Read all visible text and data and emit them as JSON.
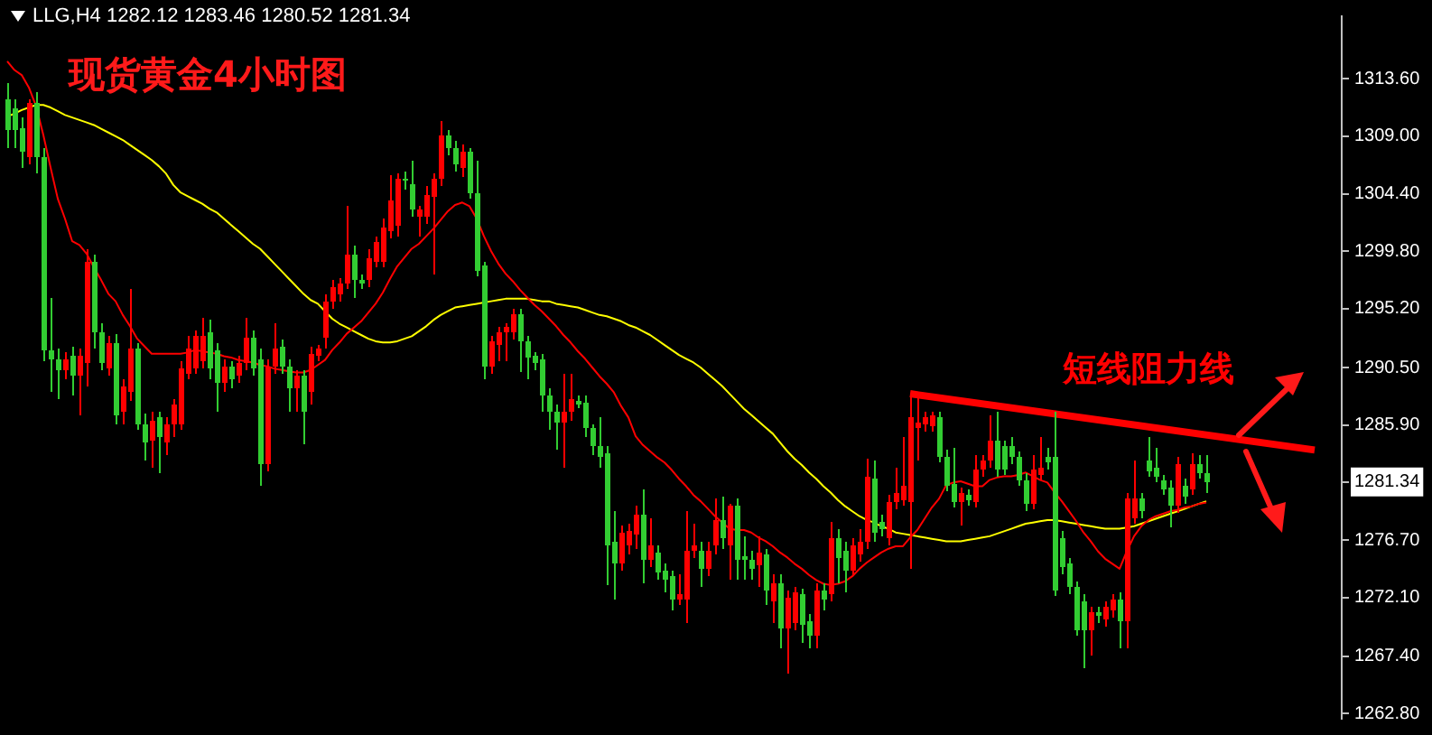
{
  "chart_data": {
    "type": "candlestick",
    "title": "现货黄金4小时图",
    "subtitle": "LLG,H4 1282.12 1283.46 1280.52 1281.34",
    "categories": [
      null,
      null,
      null,
      null,
      null,
      null,
      null,
      null,
      null,
      null,
      null,
      null,
      null,
      null,
      null,
      null,
      null,
      null,
      null,
      null,
      null,
      null,
      null,
      null,
      null,
      null,
      null,
      null,
      null,
      null,
      null,
      null,
      null,
      null,
      null,
      null,
      null,
      null,
      null,
      null,
      null,
      null,
      null,
      null,
      null,
      null,
      null,
      null,
      null,
      null,
      null,
      null,
      null,
      null,
      null,
      null,
      null,
      null,
      null,
      null,
      null,
      null,
      null,
      null,
      null,
      null,
      null,
      null,
      null,
      null,
      null,
      null,
      null,
      null,
      null,
      null,
      null,
      null,
      null,
      null,
      null,
      null,
      null,
      null,
      null,
      null,
      null,
      null,
      null,
      null,
      null,
      null,
      null,
      null,
      null,
      null,
      null,
      null,
      null,
      null,
      null,
      null,
      null,
      null,
      null,
      null,
      null,
      null,
      null,
      null,
      null,
      null,
      null,
      null,
      null,
      null,
      null,
      null,
      null,
      null,
      null,
      null,
      null,
      null,
      null,
      null,
      null,
      null,
      null,
      null,
      null,
      null,
      null,
      null,
      null,
      null,
      null,
      null,
      null,
      null,
      null,
      null,
      null,
      null,
      null,
      null,
      null,
      null,
      null,
      null,
      null,
      null,
      null,
      null,
      null,
      null,
      null,
      null,
      null,
      null,
      null,
      null,
      null,
      null,
      null,
      null,
      null,
      null,
      null,
      null,
      null,
      null,
      null,
      null,
      null,
      null,
      null,
      null,
      null,
      null,
      null,
      null
    ],
    "ohlc": [
      [
        1312.0,
        1313.3,
        1308.0,
        1309.5
      ],
      [
        1311.2,
        1312.0,
        1308.0,
        1309.5
      ],
      [
        1309.6,
        1310.5,
        1306.5,
        1307.7
      ],
      [
        1307.4,
        1312.0,
        1306.8,
        1311.6
      ],
      [
        1311.6,
        1312.5,
        1306.0,
        1307.3
      ],
      [
        1307.3,
        1308.0,
        1291.0,
        1291.9
      ],
      [
        1291.9,
        1296.0,
        1288.5,
        1291.2
      ],
      [
        1291.2,
        1292.0,
        1288.0,
        1290.3
      ],
      [
        1290.3,
        1291.8,
        1289.5,
        1291.2
      ],
      [
        1291.5,
        1292.2,
        1288.3,
        1289.8
      ],
      [
        1289.8,
        1292.0,
        1286.7,
        1291.5
      ],
      [
        1290.9,
        1300.0,
        1289.0,
        1299.0
      ],
      [
        1299.0,
        1299.5,
        1292.0,
        1293.3
      ],
      [
        1293.3,
        1294.0,
        1290.3,
        1290.9
      ],
      [
        1290.5,
        1293.0,
        1289.8,
        1292.5
      ],
      [
        1292.5,
        1293.2,
        1286.0,
        1286.7
      ],
      [
        1287.0,
        1289.5,
        1286.0,
        1289.0
      ],
      [
        1288.5,
        1296.8,
        1287.8,
        1292.0
      ],
      [
        1292.0,
        1292.5,
        1285.5,
        1286.0
      ],
      [
        1286.0,
        1286.8,
        1283.0,
        1284.5
      ],
      [
        1284.6,
        1287.0,
        1282.5,
        1286.2
      ],
      [
        1286.5,
        1287.0,
        1282.0,
        1285.0
      ],
      [
        1284.5,
        1286.5,
        1283.5,
        1286.0
      ],
      [
        1286.0,
        1288.0,
        1285.0,
        1287.5
      ],
      [
        1286.0,
        1291.0,
        1285.5,
        1290.5
      ],
      [
        1290.0,
        1293.0,
        1289.5,
        1292.0
      ],
      [
        1290.5,
        1293.5,
        1290.0,
        1293.0
      ],
      [
        1291.0,
        1294.5,
        1290.5,
        1293.0
      ],
      [
        1293.3,
        1294.4,
        1289.5,
        1290.5
      ],
      [
        1291.9,
        1292.5,
        1287.0,
        1289.2
      ],
      [
        1289.2,
        1291.2,
        1288.5,
        1290.6
      ],
      [
        1290.6,
        1291.0,
        1288.8,
        1289.5
      ],
      [
        1289.9,
        1291.5,
        1289.3,
        1290.9
      ],
      [
        1290.9,
        1294.5,
        1290.3,
        1292.9
      ],
      [
        1292.9,
        1293.5,
        1289.8,
        1290.5
      ],
      [
        1291.2,
        1292.0,
        1281.1,
        1282.8
      ],
      [
        1282.8,
        1291.2,
        1282.2,
        1290.6
      ],
      [
        1290.6,
        1294.1,
        1290.0,
        1292.0
      ],
      [
        1292.1,
        1292.8,
        1290.0,
        1290.6
      ],
      [
        1290.6,
        1291.2,
        1287.0,
        1288.8
      ],
      [
        1288.8,
        1290.3,
        1287.0,
        1289.8
      ],
      [
        1289.8,
        1290.3,
        1284.3,
        1287.0
      ],
      [
        1288.5,
        1292.2,
        1287.5,
        1291.6
      ],
      [
        1291.5,
        1292.3,
        1291.0,
        1292.0
      ],
      [
        1292.9,
        1296.3,
        1292.0,
        1295.8
      ],
      [
        1295.8,
        1297.5,
        1295.2,
        1296.9
      ],
      [
        1296.3,
        1297.6,
        1295.8,
        1297.2
      ],
      [
        1297.2,
        1303.5,
        1296.8,
        1299.6
      ],
      [
        1299.6,
        1300.3,
        1296.0,
        1297.5
      ],
      [
        1297.5,
        1298.0,
        1296.8,
        1297.2
      ],
      [
        1297.5,
        1300.0,
        1297.0,
        1299.2
      ],
      [
        1299.0,
        1301.0,
        1298.5,
        1300.5
      ],
      [
        1298.9,
        1302.4,
        1298.5,
        1301.7
      ],
      [
        1301.4,
        1305.9,
        1300.8,
        1303.9
      ],
      [
        1301.8,
        1306.0,
        1301.0,
        1305.6
      ],
      [
        1305.6,
        1306.2,
        1304.8,
        1305.4
      ],
      [
        1305.2,
        1307.0,
        1302.6,
        1303.1
      ],
      [
        1302.6,
        1303.5,
        1301.0,
        1303.1
      ],
      [
        1302.6,
        1305.0,
        1302.0,
        1304.3
      ],
      [
        1304.2,
        1306.0,
        1298.0,
        1305.6
      ],
      [
        1305.6,
        1310.2,
        1305.0,
        1309.0
      ],
      [
        1309.1,
        1309.5,
        1307.5,
        1308.0
      ],
      [
        1308.1,
        1308.6,
        1306.2,
        1306.7
      ],
      [
        1306.4,
        1308.3,
        1305.8,
        1307.8
      ],
      [
        1307.7,
        1308.1,
        1304.0,
        1304.5
      ],
      [
        1304.5,
        1307.0,
        1297.8,
        1298.3
      ],
      [
        1298.6,
        1299.0,
        1289.6,
        1290.6
      ],
      [
        1290.6,
        1293.0,
        1290.0,
        1292.6
      ],
      [
        1292.3,
        1293.8,
        1291.0,
        1293.3
      ],
      [
        1293.3,
        1294.0,
        1291.0,
        1293.7
      ],
      [
        1293.3,
        1295.2,
        1292.8,
        1294.7
      ],
      [
        1294.7,
        1295.2,
        1290.2,
        1292.6
      ],
      [
        1292.6,
        1293.0,
        1289.6,
        1291.3
      ],
      [
        1291.4,
        1291.8,
        1290.3,
        1290.8
      ],
      [
        1291.2,
        1291.6,
        1287.0,
        1288.3
      ],
      [
        1288.3,
        1288.8,
        1285.5,
        1286.9
      ],
      [
        1287.0,
        1287.5,
        1283.9,
        1286.1
      ],
      [
        1286.1,
        1290.0,
        1282.5,
        1287.0
      ],
      [
        1286.9,
        1290.0,
        1286.3,
        1288.0
      ],
      [
        1287.8,
        1288.3,
        1287.2,
        1287.6
      ],
      [
        1287.7,
        1288.2,
        1285.0,
        1285.6
      ],
      [
        1285.6,
        1286.0,
        1283.5,
        1284.2
      ],
      [
        1284.2,
        1286.5,
        1282.5,
        1283.4
      ],
      [
        1283.6,
        1284.2,
        1273.1,
        1276.2
      ],
      [
        1276.5,
        1279.0,
        1272.0,
        1274.8
      ],
      [
        1274.8,
        1277.8,
        1274.2,
        1277.3
      ],
      [
        1276.2,
        1278.0,
        1275.5,
        1277.4
      ],
      [
        1277.2,
        1279.5,
        1276.0,
        1278.7
      ],
      [
        1278.7,
        1280.8,
        1273.3,
        1275.1
      ],
      [
        1275.1,
        1278.5,
        1274.5,
        1276.3
      ],
      [
        1275.7,
        1276.3,
        1273.5,
        1274.1
      ],
      [
        1274.2,
        1274.8,
        1272.5,
        1273.5
      ],
      [
        1273.8,
        1274.3,
        1271.0,
        1272.0
      ],
      [
        1272.0,
        1274.0,
        1271.5,
        1272.4
      ],
      [
        1272.0,
        1279.0,
        1270.0,
        1275.8
      ],
      [
        1275.8,
        1278.0,
        1275.2,
        1276.2
      ],
      [
        1275.8,
        1276.5,
        1273.0,
        1274.4
      ],
      [
        1274.4,
        1276.5,
        1273.8,
        1275.8
      ],
      [
        1276.2,
        1280.0,
        1275.5,
        1278.3
      ],
      [
        1278.3,
        1280.2,
        1276.0,
        1276.9
      ],
      [
        1276.2,
        1279.6,
        1273.5,
        1279.4
      ],
      [
        1279.4,
        1280.0,
        1273.5,
        1275.1
      ],
      [
        1275.4,
        1277.0,
        1273.5,
        1275.1
      ],
      [
        1275.1,
        1275.8,
        1273.5,
        1274.4
      ],
      [
        1274.7,
        1277.0,
        1273.0,
        1275.7
      ],
      [
        1275.5,
        1276.0,
        1271.5,
        1272.7
      ],
      [
        1271.8,
        1274.0,
        1270.0,
        1273.3
      ],
      [
        1273.3,
        1274.0,
        1268.0,
        1269.6
      ],
      [
        1269.6,
        1272.6,
        1266.0,
        1272.1
      ],
      [
        1270.0,
        1273.0,
        1269.5,
        1272.5
      ],
      [
        1272.3,
        1272.8,
        1268.5,
        1269.9
      ],
      [
        1270.2,
        1270.8,
        1268.0,
        1269.0
      ],
      [
        1269.0,
        1273.3,
        1268.0,
        1272.7
      ],
      [
        1272.7,
        1273.2,
        1271.0,
        1271.9
      ],
      [
        1272.3,
        1278.2,
        1271.8,
        1276.9
      ],
      [
        1276.9,
        1277.5,
        1273.3,
        1275.2
      ],
      [
        1275.8,
        1276.5,
        1272.5,
        1274.3
      ],
      [
        1274.3,
        1276.8,
        1273.8,
        1276.2
      ],
      [
        1275.5,
        1277.5,
        1275.0,
        1276.6
      ],
      [
        1276.5,
        1283.2,
        1276.0,
        1281.8
      ],
      [
        1281.6,
        1283.0,
        1276.5,
        1277.3
      ],
      [
        1278.2,
        1278.7,
        1277.0,
        1277.6
      ],
      [
        1276.9,
        1280.3,
        1276.3,
        1279.7
      ],
      [
        1279.7,
        1282.5,
        1279.2,
        1280.4
      ],
      [
        1279.9,
        1285.0,
        1279.4,
        1281.0
      ],
      [
        1279.7,
        1288.1,
        1274.4,
        1286.5
      ],
      [
        1285.6,
        1288.2,
        1283.0,
        1286.1
      ],
      [
        1285.9,
        1287.0,
        1285.4,
        1286.5
      ],
      [
        1285.8,
        1287.0,
        1285.3,
        1286.6
      ],
      [
        1286.5,
        1287.0,
        1282.9,
        1283.4
      ],
      [
        1283.4,
        1283.9,
        1280.6,
        1281.1
      ],
      [
        1281.2,
        1284.0,
        1279.3,
        1279.8
      ],
      [
        1279.8,
        1280.9,
        1277.8,
        1280.4
      ],
      [
        1280.3,
        1280.8,
        1279.4,
        1279.9
      ],
      [
        1279.8,
        1283.5,
        1279.3,
        1282.3
      ],
      [
        1282.3,
        1283.5,
        1281.8,
        1283.0
      ],
      [
        1283.0,
        1286.7,
        1282.5,
        1284.6
      ],
      [
        1284.6,
        1287.0,
        1281.8,
        1282.3
      ],
      [
        1284.2,
        1284.7,
        1281.9,
        1282.4
      ],
      [
        1284.2,
        1285.0,
        1282.8,
        1283.3
      ],
      [
        1283.3,
        1283.8,
        1281.0,
        1281.5
      ],
      [
        1281.5,
        1282.0,
        1279.0,
        1279.6
      ],
      [
        1279.6,
        1283.5,
        1279.1,
        1282.3
      ],
      [
        1281.9,
        1285.0,
        1281.4,
        1282.5
      ],
      [
        1283.4,
        1284.0,
        1282.4,
        1282.9
      ],
      [
        1283.3,
        1287.0,
        1272.2,
        1272.7
      ],
      [
        1276.9,
        1277.4,
        1274.0,
        1274.5
      ],
      [
        1274.8,
        1275.3,
        1272.4,
        1272.9
      ],
      [
        1272.9,
        1273.4,
        1269.0,
        1269.5
      ],
      [
        1271.8,
        1272.3,
        1266.4,
        1269.5
      ],
      [
        1269.5,
        1271.4,
        1267.5,
        1270.9
      ],
      [
        1270.9,
        1271.4,
        1270.1,
        1270.6
      ],
      [
        1270.3,
        1271.8,
        1269.8,
        1271.3
      ],
      [
        1271.0,
        1272.4,
        1270.5,
        1271.9
      ],
      [
        1272.0,
        1272.5,
        1268.0,
        1270.2
      ],
      [
        1270.2,
        1280.5,
        1268.0,
        1280.0
      ],
      [
        1278.5,
        1283.0,
        1278.0,
        1280.0
      ],
      [
        1280.0,
        1280.5,
        1278.5,
        1279.0
      ],
      [
        1283.0,
        1285.0,
        1281.7,
        1282.2
      ],
      [
        1282.5,
        1284.0,
        1281.3,
        1281.8
      ],
      [
        1281.4,
        1281.9,
        1280.3,
        1280.8
      ],
      [
        1280.9,
        1281.4,
        1277.7,
        1279.4
      ],
      [
        1279.4,
        1283.3,
        1278.9,
        1282.8
      ],
      [
        1281.1,
        1281.6,
        1279.6,
        1280.1
      ],
      [
        1280.8,
        1283.6,
        1280.3,
        1282.8
      ],
      [
        1282.7,
        1283.5,
        1281.6,
        1282.1
      ],
      [
        1282.12,
        1283.46,
        1280.52,
        1281.34
      ],
      null,
      null,
      null,
      null,
      null,
      null,
      null,
      null,
      null,
      null,
      null,
      null,
      null,
      null,
      null
    ],
    "colors": [
      "#32cd32",
      "#32cd32",
      "#32cd32",
      "#ff0000",
      "#32cd32",
      "#32cd32",
      "#32cd32",
      "#32cd32",
      "#ff0000",
      "#32cd32",
      "#ff0000",
      "#ff0000",
      "#32cd32",
      "#32cd32",
      "#ff0000",
      "#32cd32",
      "#ff0000",
      "#ff0000",
      "#32cd32",
      "#32cd32",
      "#ff0000",
      "#32cd32",
      "#ff0000",
      "#ff0000",
      "#ff0000",
      "#ff0000",
      "#ff0000",
      "#ff0000",
      "#32cd32",
      "#32cd32",
      "#ff0000",
      "#32cd32",
      "#ff0000",
      "#ff0000",
      "#32cd32",
      "#32cd32",
      "#ff0000",
      "#ff0000",
      "#32cd32",
      "#32cd32",
      "#ff0000",
      "#32cd32",
      "#ff0000",
      "#ff0000",
      "#ff0000",
      "#ff0000",
      "#ff0000",
      "#ff0000",
      "#32cd32",
      "#32cd32",
      "#ff0000",
      "#ff0000",
      "#ff0000",
      "#ff0000",
      "#ff0000",
      "#32cd32",
      "#32cd32",
      "#ff0000",
      "#ff0000",
      "#ff0000",
      "#ff0000",
      "#32cd32",
      "#32cd32",
      "#ff0000",
      "#32cd32",
      "#32cd32",
      "#32cd32",
      "#ff0000",
      "#ff0000",
      "#ff0000",
      "#ff0000",
      "#32cd32",
      "#32cd32",
      "#32cd32",
      "#32cd32",
      "#32cd32",
      "#32cd32",
      "#ff0000",
      "#ff0000",
      "#32cd32",
      "#32cd32",
      "#32cd32",
      "#32cd32",
      "#32cd32",
      "#32cd32",
      "#ff0000",
      "#ff0000",
      "#ff0000",
      "#32cd32",
      "#ff0000",
      "#32cd32",
      "#32cd32",
      "#32cd32",
      "#ff0000",
      "#ff0000",
      "#ff0000",
      "#32cd32",
      "#ff0000",
      "#ff0000",
      "#32cd32",
      "#ff0000",
      "#32cd32",
      "#32cd32",
      "#32cd32",
      "#ff0000",
      "#32cd32",
      "#ff0000",
      "#32cd32",
      "#ff0000",
      "#ff0000",
      "#32cd32",
      "#32cd32",
      "#ff0000",
      "#32cd32",
      "#ff0000",
      "#32cd32",
      "#32cd32",
      "#ff0000",
      "#ff0000",
      "#ff0000",
      "#32cd32",
      "#32cd32",
      "#ff0000",
      "#ff0000",
      "#ff0000",
      "#ff0000",
      "#ff0000",
      "#ff0000",
      "#ff0000",
      "#32cd32",
      "#32cd32",
      "#32cd32",
      "#ff0000",
      "#32cd32",
      "#ff0000",
      "#ff0000",
      "#ff0000",
      "#32cd32",
      "#32cd32",
      "#32cd32",
      "#32cd32",
      "#32cd32",
      "#ff0000",
      "#ff0000",
      "#32cd32",
      "#32cd32",
      "#32cd32",
      "#32cd32",
      "#32cd32",
      "#32cd32",
      "#ff0000",
      "#32cd32",
      "#ff0000",
      "#ff0000",
      "#32cd32",
      "#ff0000",
      "#ff0000",
      "#32cd32",
      "#32cd32",
      "#32cd32",
      "#32cd32",
      "#32cd32",
      "#ff0000",
      "#32cd32",
      "#ff0000",
      "#32cd32",
      "#32cd32",
      null,
      null,
      null,
      null,
      null,
      null,
      null,
      null,
      null,
      null,
      null,
      null,
      null,
      null,
      null
    ],
    "series": [
      {
        "type": "line",
        "color": "#ff0000",
        "values": [
          1315.0,
          1314.3,
          1313.9,
          1312.9,
          1311.4,
          1309.1,
          1306.5,
          1304.0,
          1302.4,
          1300.6,
          1300.3,
          1299.6,
          1298.5,
          1297.5,
          1296.4,
          1295.8,
          1294.7,
          1293.8,
          1292.8,
          1292.2,
          1291.6,
          1291.6,
          1291.6,
          1291.6,
          1291.6,
          1291.7,
          1291.9,
          1291.8,
          1291.7,
          1291.6,
          1291.4,
          1291.3,
          1291.1,
          1291.0,
          1290.9,
          1290.7,
          1290.6,
          1290.4,
          1290.3,
          1290.2,
          1290.1,
          1290.1,
          1290.3,
          1290.7,
          1291.1,
          1291.9,
          1292.5,
          1293.2,
          1293.7,
          1294.2,
          1294.9,
          1295.6,
          1296.5,
          1297.6,
          1298.6,
          1299.3,
          1300.0,
          1300.4,
          1301.0,
          1301.6,
          1302.3,
          1303.0,
          1303.5,
          1303.7,
          1303.4,
          1302.4,
          1301.0,
          1299.8,
          1298.8,
          1298.0,
          1297.4,
          1296.7,
          1296.1,
          1295.5,
          1295.0,
          1294.4,
          1293.8,
          1293.1,
          1292.5,
          1291.8,
          1291.2,
          1290.5,
          1289.8,
          1289.2,
          1288.5,
          1287.4,
          1286.5,
          1285.0,
          1284.3,
          1283.8,
          1283.3,
          1282.9,
          1282.3,
          1281.6,
          1281.0,
          1280.3,
          1279.8,
          1279.2,
          1278.6,
          1278.1,
          1277.6,
          1277.5,
          1277.5,
          1277.3,
          1276.9,
          1276.6,
          1276.2,
          1275.7,
          1275.3,
          1274.8,
          1274.4,
          1273.9,
          1273.5,
          1273.2,
          1273.1,
          1273.2,
          1273.4,
          1273.8,
          1274.4,
          1274.9,
          1275.3,
          1275.7,
          1276.0,
          1276.2,
          1276.2,
          1276.9,
          1277.5,
          1278.4,
          1279.3,
          1280.0,
          1281.1,
          1281.3,
          1281.4,
          1281.2,
          1281.0,
          1281.0,
          1281.5,
          1281.7,
          1281.8,
          1281.8,
          1281.9,
          1282.1,
          1281.8,
          1281.5,
          1281.3,
          1280.5,
          1279.8,
          1279.0,
          1278.2,
          1277.3,
          1276.6,
          1275.8,
          1275.2,
          1274.8,
          1274.4,
          1275.8,
          1277.0,
          1277.8,
          1278.3,
          1278.6,
          1278.8,
          1279.0,
          1279.1,
          1279.3,
          1279.4,
          1279.6,
          1279.7,
          null,
          null,
          null,
          null,
          null,
          null,
          null,
          null,
          null,
          null,
          null,
          null,
          null,
          null,
          null
        ]
      },
      {
        "type": "line",
        "color": "#ffff00",
        "values": [
          1310.6,
          1310.8,
          1311.1,
          1311.3,
          1311.5,
          1311.5,
          1311.3,
          1311.0,
          1310.7,
          1310.5,
          1310.3,
          1310.1,
          1309.9,
          1309.6,
          1309.3,
          1309.0,
          1308.7,
          1308.3,
          1307.9,
          1307.5,
          1307.1,
          1306.6,
          1306.0,
          1305.1,
          1304.5,
          1304.2,
          1303.9,
          1303.6,
          1303.2,
          1302.9,
          1302.4,
          1301.9,
          1301.4,
          1300.9,
          1300.4,
          1300.0,
          1299.4,
          1298.8,
          1298.2,
          1297.6,
          1297.0,
          1296.4,
          1295.9,
          1295.6,
          1295.0,
          1294.4,
          1294.0,
          1293.7,
          1293.4,
          1293.1,
          1292.8,
          1292.6,
          1292.5,
          1292.5,
          1292.6,
          1292.8,
          1293.0,
          1293.4,
          1293.8,
          1294.3,
          1294.7,
          1295.0,
          1295.3,
          1295.4,
          1295.5,
          1295.6,
          1295.7,
          1295.8,
          1295.9,
          1296.0,
          1296.0,
          1296.0,
          1296.0,
          1295.9,
          1295.8,
          1295.8,
          1295.6,
          1295.5,
          1295.4,
          1295.3,
          1295.1,
          1294.9,
          1294.7,
          1294.6,
          1294.4,
          1294.2,
          1293.9,
          1293.7,
          1293.4,
          1293.1,
          1292.7,
          1292.3,
          1291.9,
          1291.5,
          1291.2,
          1290.9,
          1290.5,
          1290.0,
          1289.5,
          1289.0,
          1288.4,
          1287.8,
          1287.2,
          1286.7,
          1286.2,
          1285.7,
          1285.2,
          1284.5,
          1283.8,
          1283.2,
          1282.7,
          1282.1,
          1281.6,
          1281.0,
          1280.5,
          1279.9,
          1279.4,
          1279.0,
          1278.6,
          1278.3,
          1278.1,
          1277.8,
          1277.6,
          1277.3,
          1277.2,
          1277.1,
          1277.0,
          1276.9,
          1276.8,
          1276.7,
          1276.6,
          1276.6,
          1276.6,
          1276.7,
          1276.8,
          1276.9,
          1277.0,
          1277.2,
          1277.4,
          1277.6,
          1277.8,
          1278.0,
          1278.1,
          1278.2,
          1278.3,
          1278.3,
          1278.2,
          1278.1,
          1278.0,
          1277.9,
          1277.8,
          1277.7,
          1277.6,
          1277.6,
          1277.6,
          1277.7,
          1277.8,
          1278.0,
          1278.2,
          1278.4,
          1278.6,
          1278.8,
          1279.0,
          1279.2,
          1279.4,
          1279.6,
          1279.8,
          null,
          null,
          null,
          null,
          null,
          null,
          null,
          null,
          null,
          null,
          null,
          null,
          null,
          null,
          null
        ]
      },
      {
        "name": "短线阻力线",
        "type": "line",
        "color": "#ff0000",
        "values": [
          null,
          null,
          null,
          null,
          null,
          null,
          null,
          null,
          null,
          null,
          null,
          null,
          null,
          null,
          null,
          null,
          null,
          null,
          null,
          null,
          null,
          null,
          null,
          null,
          null,
          null,
          null,
          null,
          null,
          null,
          null,
          null,
          null,
          null,
          null,
          null,
          null,
          null,
          null,
          null,
          null,
          null,
          null,
          null,
          null,
          null,
          null,
          null,
          null,
          null,
          null,
          null,
          null,
          null,
          null,
          null,
          null,
          null,
          null,
          null,
          null,
          null,
          null,
          null,
          null,
          null,
          null,
          null,
          null,
          null,
          null,
          null,
          null,
          null,
          null,
          null,
          null,
          null,
          null,
          null,
          null,
          null,
          null,
          null,
          null,
          null,
          null,
          null,
          null,
          null,
          null,
          null,
          null,
          null,
          null,
          null,
          null,
          null,
          null,
          null,
          null,
          null,
          null,
          null,
          null,
          null,
          null,
          null,
          null,
          null,
          null,
          null,
          null,
          null,
          null,
          null,
          null,
          null,
          null,
          null,
          null,
          null,
          null,
          null,
          null,
          1288.4,
          null,
          null,
          null,
          null,
          null,
          null,
          null,
          null,
          null,
          null,
          null,
          null,
          null,
          null,
          null,
          null,
          null,
          null,
          null,
          null,
          null,
          null,
          null,
          null,
          null,
          null,
          null,
          null,
          null,
          null,
          null,
          null,
          null,
          null,
          null,
          null,
          null,
          null,
          null,
          null,
          null,
          null,
          null,
          null,
          null,
          null,
          null,
          null,
          null,
          null,
          null,
          null,
          null,
          null,
          null,
          1283.9
        ]
      }
    ],
    "ylim": [
      1262.4,
      1318.6
    ],
    "yticks": [
      {
        "value": 1262.8,
        "label": "1262.80"
      },
      {
        "value": 1267.4,
        "label": "1267.40"
      },
      {
        "value": 1272.1,
        "label": "1272.10"
      },
      {
        "value": 1276.7,
        "label": "1276.70"
      },
      {
        "value": 1281.34,
        "label": "1281.34"
      },
      {
        "value": 1285.9,
        "label": "1285.90"
      },
      {
        "value": 1290.5,
        "label": "1290.50"
      },
      {
        "value": 1295.2,
        "label": "1295.20"
      },
      {
        "value": 1299.8,
        "label": "1299.80"
      },
      {
        "value": 1304.4,
        "label": "1304.40"
      },
      {
        "value": 1309.0,
        "label": "1309.00"
      },
      {
        "value": 1313.6,
        "label": "1313.60"
      }
    ],
    "tick_labels": "y"
  }
}
